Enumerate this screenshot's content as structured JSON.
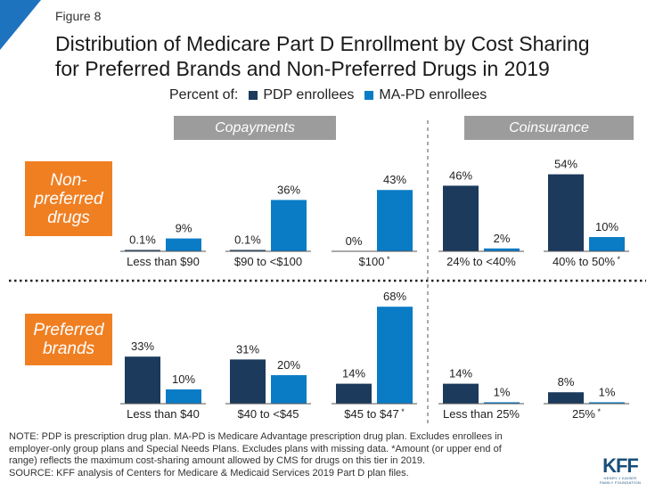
{
  "figure_label": "Figure 8",
  "title_line1": "Distribution of Medicare Part D Enrollment by Cost Sharing",
  "title_line2": "for Preferred Brands and Non-Preferred Drugs in 2019",
  "legend": {
    "prefix": "Percent of:",
    "series": [
      {
        "name": "PDP enrollees",
        "color": "#1b3a5c"
      },
      {
        "name": "MA-PD enrollees",
        "color": "#0a7cc6"
      }
    ]
  },
  "section_headers": {
    "copayments": "Copayments",
    "coinsurance": "Coinsurance"
  },
  "row_labels": {
    "non_preferred": [
      "Non-",
      "preferred",
      "drugs"
    ],
    "preferred": [
      "Preferred",
      "brands"
    ]
  },
  "notes": {
    "line1": "NOTE: PDP is prescription drug plan. MA-PD is Medicare Advantage prescription drug plan. Excludes enrollees in",
    "line2": "employer-only group plans and Special Needs Plans. Excludes plans with missing data. *Amount (or upper end of",
    "line3": "range) reflects the maximum cost-sharing amount allowed by CMS for drugs on this tier in 2019.",
    "line4": "SOURCE: KFF analysis of Centers for Medicare & Medicaid Services 2019 Part D plan files."
  },
  "logo": {
    "mark": "KFF",
    "sub1": "HENRY J KAISER",
    "sub2": "FAMILY FOUNDATION"
  },
  "chart_data": {
    "type": "bar",
    "ylim": [
      0,
      100
    ],
    "series_names": [
      "PDP enrollees",
      "MA-PD enrollees"
    ],
    "panels": [
      {
        "row": "Non-preferred drugs",
        "section": "Copayments",
        "category": "Less than $90",
        "star": false,
        "values": [
          0.1,
          9
        ],
        "labels": [
          "0.1%",
          "9%"
        ]
      },
      {
        "row": "Non-preferred drugs",
        "section": "Copayments",
        "category": "$90 to <$100",
        "star": false,
        "values": [
          0.1,
          36
        ],
        "labels": [
          "0.1%",
          "36%"
        ]
      },
      {
        "row": "Non-preferred drugs",
        "section": "Copayments",
        "category": "$100",
        "star": true,
        "values": [
          0,
          43
        ],
        "labels": [
          "0%",
          "43%"
        ]
      },
      {
        "row": "Non-preferred drugs",
        "section": "Coinsurance",
        "category": "24% to <40%",
        "star": false,
        "values": [
          46,
          2
        ],
        "labels": [
          "46%",
          "2%"
        ]
      },
      {
        "row": "Non-preferred drugs",
        "section": "Coinsurance",
        "category": "40% to 50%",
        "star": true,
        "values": [
          54,
          10
        ],
        "labels": [
          "54%",
          "10%"
        ]
      },
      {
        "row": "Preferred brands",
        "section": "Copayments",
        "category": "Less than $40",
        "star": false,
        "values": [
          33,
          10
        ],
        "labels": [
          "33%",
          "10%"
        ]
      },
      {
        "row": "Preferred brands",
        "section": "Copayments",
        "category": "$40 to <$45",
        "star": false,
        "values": [
          31,
          20
        ],
        "labels": [
          "31%",
          "20%"
        ]
      },
      {
        "row": "Preferred brands",
        "section": "Copayments",
        "category": "$45 to $47",
        "star": true,
        "values": [
          14,
          68
        ],
        "labels": [
          "14%",
          "68%"
        ]
      },
      {
        "row": "Preferred brands",
        "section": "Coinsurance",
        "category": "Less than 25%",
        "star": false,
        "values": [
          14,
          1
        ],
        "labels": [
          "14%",
          "1%"
        ]
      },
      {
        "row": "Preferred brands",
        "section": "Coinsurance",
        "category": "25%",
        "star": true,
        "values": [
          8,
          1
        ],
        "labels": [
          "8%",
          "1%"
        ]
      }
    ]
  }
}
